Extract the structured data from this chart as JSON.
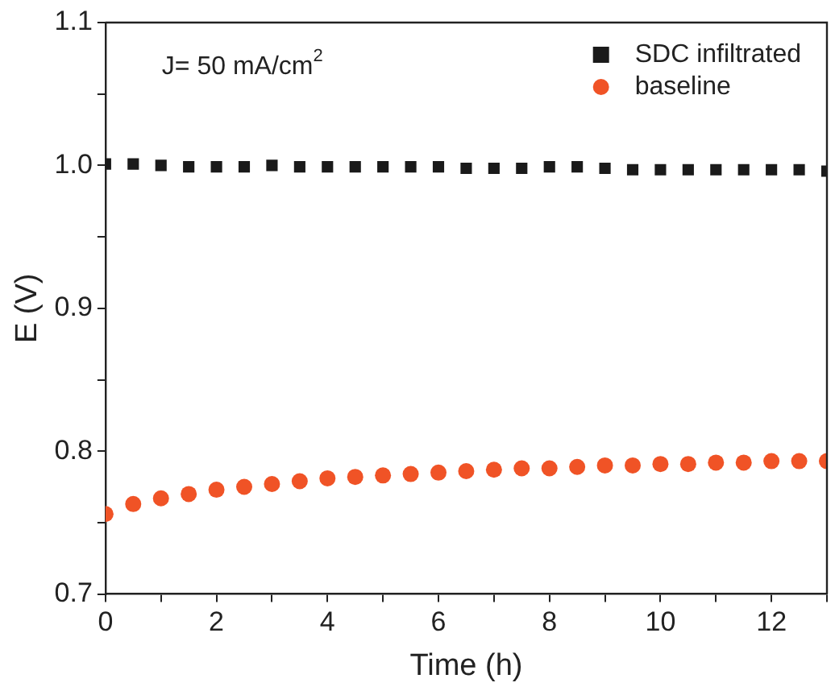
{
  "chart_data": {
    "type": "scatter",
    "xlabel": "Time (h)",
    "ylabel": "E (V)",
    "annotations": [
      "J= 50 mA/cm$^{2}$"
    ],
    "xlim": [
      0,
      13
    ],
    "xticks": [
      0,
      {
        "value": 1,
        "label": null
      },
      2,
      {
        "value": 3,
        "label": null
      },
      4,
      {
        "value": 5,
        "label": null
      },
      6,
      {
        "value": 7,
        "label": null
      },
      8,
      {
        "value": 9,
        "label": null
      },
      10,
      {
        "value": 11,
        "label": null
      },
      12,
      {
        "value": 13,
        "label": null
      }
    ],
    "ylim": [
      0.7,
      1.1
    ],
    "yticks": [
      0.7,
      {
        "value": 0.75,
        "label": null
      },
      0.8,
      {
        "value": 0.85,
        "label": null
      },
      0.9,
      {
        "value": 0.95,
        "label": null
      },
      {
        "value": 1.0,
        "label": "1.0"
      },
      {
        "value": 1.05,
        "label": null
      },
      1.1
    ],
    "x": [
      0,
      0.5,
      1,
      1.5,
      2,
      2.5,
      3,
      3.5,
      4,
      4.5,
      5,
      5.5,
      6,
      6.5,
      7,
      7.5,
      8,
      8.5,
      9,
      9.5,
      10,
      10.5,
      11,
      11.5,
      12,
      12.5,
      13
    ],
    "series": [
      {
        "name": "SDC infiltrated",
        "color": "#1a1a1a",
        "marker": "square",
        "values": [
          1.001,
          1.001,
          1.0,
          0.999,
          0.999,
          0.999,
          1.0,
          0.999,
          0.999,
          0.999,
          0.999,
          0.999,
          0.999,
          0.998,
          0.998,
          0.998,
          0.999,
          0.999,
          0.998,
          0.997,
          0.997,
          0.997,
          0.997,
          0.997,
          0.997,
          0.997,
          0.996
        ]
      },
      {
        "name": "baseline",
        "color": "#f05326",
        "marker": "circle",
        "values": [
          0.756,
          0.763,
          0.767,
          0.77,
          0.773,
          0.775,
          0.777,
          0.779,
          0.781,
          0.782,
          0.783,
          0.784,
          0.785,
          0.786,
          0.787,
          0.788,
          0.788,
          0.789,
          0.79,
          0.79,
          0.791,
          0.791,
          0.792,
          0.792,
          0.793,
          0.793,
          0.793
        ]
      }
    ],
    "legend": "top right",
    "grid": false
  }
}
